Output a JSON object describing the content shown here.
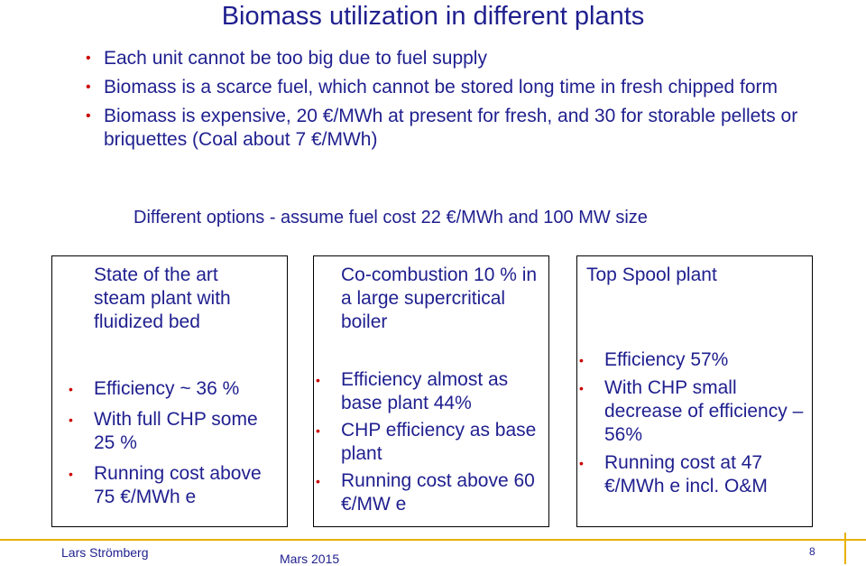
{
  "title": "Biomass utilization in different plants",
  "bullets": [
    "Each unit cannot be too big due to fuel supply",
    "Biomass is a scarce fuel, which cannot be stored long time in fresh chipped form",
    "Biomass is expensive, 20 €/MWh at present for fresh, and 30 for storable pellets or briquettes (Coal about 7 €/MWh)"
  ],
  "subhead": "Different options - assume fuel cost 22 €/MWh and 100 MW size",
  "boxes": [
    {
      "heading": "State of the art steam plant with fluidized bed",
      "items": [
        "Efficiency ~ 36 %",
        "With full CHP some 25 %",
        "Running cost above 75 €/MWh e"
      ]
    },
    {
      "heading": "Co-combustion 10 % in a large supercritical boiler",
      "items": [
        "Efficiency almost as base plant 44%",
        "CHP efficiency as base plant",
        "Running cost above 60 €/MW e"
      ]
    },
    {
      "heading": "Top Spool plant",
      "items": [
        "Efficiency 57%",
        "With CHP small decrease of efficiency – 56%",
        "Running cost at 47 €/MWh e incl. O&M"
      ]
    }
  ],
  "footer": {
    "author": "Lars Strömberg",
    "date": "Mars 2015",
    "page": "8"
  },
  "colors": {
    "text": "#1f1f8f",
    "bullet": "#cc0000",
    "accent_line": "#e8b000"
  }
}
